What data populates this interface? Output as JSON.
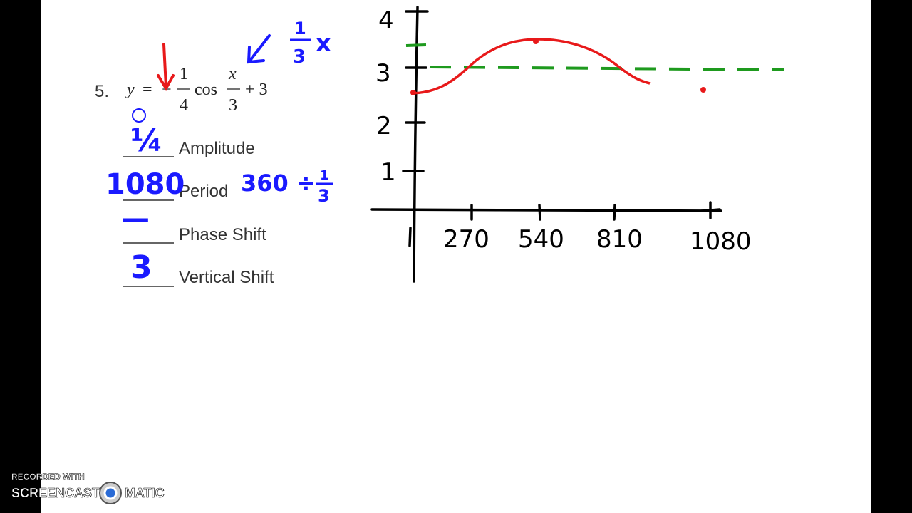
{
  "problem": {
    "number": "5.",
    "equation": {
      "lhs": "y",
      "equals": "=",
      "sign": "−",
      "coef_num": "1",
      "coef_den": "4",
      "func": "cos",
      "arg_num": "x",
      "arg_den": "3",
      "shift": "+ 3"
    },
    "note": {
      "numerator": "1",
      "denominator": "3",
      "variable": "x"
    },
    "answers": [
      {
        "label": "Amplitude",
        "handwritten": "¼"
      },
      {
        "label": "Period",
        "handwritten": "1080",
        "work": {
          "text": "360 ÷",
          "numerator": "1",
          "denominator": "3"
        }
      },
      {
        "label": "Phase Shift",
        "handwritten": "—"
      },
      {
        "label": "Vertical Shift",
        "handwritten": "3"
      }
    ]
  },
  "graph": {
    "y_labels": [
      "1",
      "2",
      "3",
      "4"
    ],
    "x_labels": [
      "270",
      "540",
      "810",
      "1080"
    ]
  },
  "watermark": {
    "top": "RECORDED WITH",
    "left": "SCREENCAST",
    "right": "MATIC"
  }
}
